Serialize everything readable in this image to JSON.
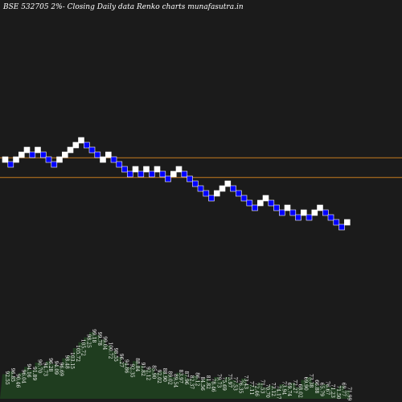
{
  "title": "BSE 532705 2%-  Closing Daily data  Renko  charts munafasutra.in",
  "colors": {
    "background": "#1b1b1b",
    "up_brick": "#ffffff",
    "down_brick": "#0000ff",
    "reference_line": "#c87d1e",
    "volume_area": "#1f3d1f",
    "text": "#ffffff"
  },
  "chart_data": {
    "type": "renko",
    "y_range": [
      60,
      115
    ],
    "reference_lines": [
      100.3,
      96.2
    ],
    "bricks": [
      {
        "col": 0,
        "level": 100,
        "dir": "up"
      },
      {
        "col": 1,
        "level": 99,
        "dir": "down"
      },
      {
        "col": 2,
        "level": 100,
        "dir": "up"
      },
      {
        "col": 3,
        "level": 101,
        "dir": "up"
      },
      {
        "col": 4,
        "level": 102,
        "dir": "up"
      },
      {
        "col": 5,
        "level": 101,
        "dir": "down"
      },
      {
        "col": 6,
        "level": 102,
        "dir": "up"
      },
      {
        "col": 7,
        "level": 101,
        "dir": "down"
      },
      {
        "col": 8,
        "level": 100,
        "dir": "down"
      },
      {
        "col": 9,
        "level": 99,
        "dir": "down"
      },
      {
        "col": 10,
        "level": 100,
        "dir": "up"
      },
      {
        "col": 11,
        "level": 101,
        "dir": "up"
      },
      {
        "col": 12,
        "level": 102,
        "dir": "up"
      },
      {
        "col": 13,
        "level": 103,
        "dir": "up"
      },
      {
        "col": 14,
        "level": 104,
        "dir": "up"
      },
      {
        "col": 15,
        "level": 103,
        "dir": "down"
      },
      {
        "col": 16,
        "level": 102,
        "dir": "down"
      },
      {
        "col": 17,
        "level": 101,
        "dir": "down"
      },
      {
        "col": 18,
        "level": 100,
        "dir": "up"
      },
      {
        "col": 19,
        "level": 101,
        "dir": "up"
      },
      {
        "col": 20,
        "level": 100,
        "dir": "down"
      },
      {
        "col": 21,
        "level": 99,
        "dir": "down"
      },
      {
        "col": 22,
        "level": 98,
        "dir": "down"
      },
      {
        "col": 23,
        "level": 97,
        "dir": "down"
      },
      {
        "col": 24,
        "level": 98,
        "dir": "up"
      },
      {
        "col": 25,
        "level": 97,
        "dir": "down"
      },
      {
        "col": 26,
        "level": 98,
        "dir": "up"
      },
      {
        "col": 27,
        "level": 97,
        "dir": "down"
      },
      {
        "col": 28,
        "level": 98,
        "dir": "up"
      },
      {
        "col": 29,
        "level": 97,
        "dir": "down"
      },
      {
        "col": 30,
        "level": 96,
        "dir": "down"
      },
      {
        "col": 31,
        "level": 97,
        "dir": "up"
      },
      {
        "col": 32,
        "level": 98,
        "dir": "up"
      },
      {
        "col": 33,
        "level": 97,
        "dir": "down"
      },
      {
        "col": 34,
        "level": 96,
        "dir": "down"
      },
      {
        "col": 35,
        "level": 95,
        "dir": "down"
      },
      {
        "col": 36,
        "level": 94,
        "dir": "down"
      },
      {
        "col": 37,
        "level": 93,
        "dir": "down"
      },
      {
        "col": 38,
        "level": 92,
        "dir": "down"
      },
      {
        "col": 39,
        "level": 93,
        "dir": "up"
      },
      {
        "col": 40,
        "level": 94,
        "dir": "up"
      },
      {
        "col": 41,
        "level": 95,
        "dir": "up"
      },
      {
        "col": 42,
        "level": 94,
        "dir": "down"
      },
      {
        "col": 43,
        "level": 93,
        "dir": "down"
      },
      {
        "col": 44,
        "level": 92,
        "dir": "down"
      },
      {
        "col": 45,
        "level": 91,
        "dir": "down"
      },
      {
        "col": 46,
        "level": 90,
        "dir": "down"
      },
      {
        "col": 47,
        "level": 91,
        "dir": "up"
      },
      {
        "col": 48,
        "level": 92,
        "dir": "up"
      },
      {
        "col": 49,
        "level": 91,
        "dir": "down"
      },
      {
        "col": 50,
        "level": 90,
        "dir": "down"
      },
      {
        "col": 51,
        "level": 89,
        "dir": "down"
      },
      {
        "col": 52,
        "level": 90,
        "dir": "up"
      },
      {
        "col": 53,
        "level": 89,
        "dir": "down"
      },
      {
        "col": 54,
        "level": 88,
        "dir": "down"
      },
      {
        "col": 55,
        "level": 89,
        "dir": "up"
      },
      {
        "col": 56,
        "level": 88,
        "dir": "down"
      },
      {
        "col": 57,
        "level": 89,
        "dir": "up"
      },
      {
        "col": 58,
        "level": 90,
        "dir": "up"
      },
      {
        "col": 59,
        "level": 89,
        "dir": "down"
      },
      {
        "col": 60,
        "level": 88,
        "dir": "down"
      },
      {
        "col": 61,
        "level": 87,
        "dir": "down"
      },
      {
        "col": 62,
        "level": 86,
        "dir": "down"
      },
      {
        "col": 63,
        "level": 87,
        "dir": "up"
      }
    ],
    "volume_profile": [
      0.34,
      0.38,
      0.3,
      0.36,
      0.44,
      0.4,
      0.5,
      0.46,
      0.52,
      0.48,
      0.46,
      0.56,
      0.6,
      0.7,
      0.78,
      0.85,
      0.92,
      0.88,
      0.82,
      0.74,
      0.66,
      0.58,
      0.5,
      0.44,
      0.52,
      0.46,
      0.4,
      0.42,
      0.36,
      0.38,
      0.34,
      0.3,
      0.36,
      0.34,
      0.28,
      0.32,
      0.26,
      0.28,
      0.24,
      0.3,
      0.26,
      0.3,
      0.26,
      0.22,
      0.28,
      0.2,
      0.18,
      0.22,
      0.16,
      0.18,
      0.14,
      0.2,
      0.18,
      0.22,
      0.16,
      0.26,
      0.3,
      0.22,
      0.18,
      0.2,
      0.16,
      0.14,
      0.18,
      0.12
    ],
    "value_labels": [
      "92.55",
      "96.85",
      "90.46",
      "96.04",
      "94.16",
      "91.89",
      "90.70",
      "94.73",
      "96.28",
      "94.09",
      "96.69",
      "98.48",
      "103.15",
      "105.72",
      "105.72",
      "98.25",
      "99.18",
      "99.78",
      "99.04",
      "100.72",
      "98.55",
      "96.27",
      "94.86",
      "92.35",
      "88.84",
      "91.82",
      "92.12",
      "85.90",
      "92.02",
      "88.90",
      "89.02",
      "89.54",
      "83.97",
      "87.96",
      "82.37",
      "86.12",
      "84.56",
      "81.82",
      "78.46",
      "79.73",
      "75.69",
      "75.97",
      "77.53",
      "76.35",
      "73.43",
      "77.11",
      "72.46",
      "71.53",
      "70.70",
      "73.12",
      "74.17",
      "73.94",
      "69.74",
      "72.27",
      "68.02",
      "69.90",
      "73.38",
      "66.88",
      "65.79",
      "76.67",
      "71.23",
      "71.50",
      "69.77",
      "71.99"
    ]
  }
}
